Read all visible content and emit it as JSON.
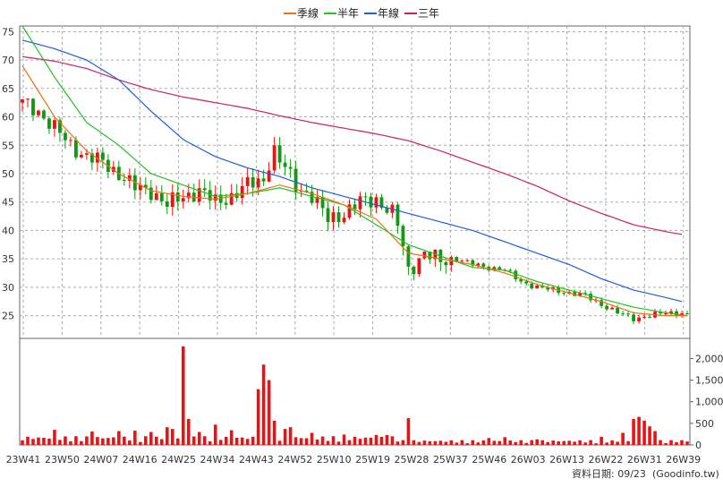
{
  "legend": {
    "quarter_label": "季線",
    "half_year_label": "半年",
    "year_label": "年線",
    "three_year_label": "三年"
  },
  "footer": {
    "date_label": "資料日期: 09/23",
    "source_label": "(Goodinfo.tw)"
  },
  "colors": {
    "quarter": "#e8741a",
    "half_year": "#22c322",
    "year": "#1f5fd6",
    "three_year": "#cc1f66",
    "candle_up": "#ee1111",
    "candle_down": "#119911",
    "volume": "#ee1111",
    "grid": "#aaaaaa",
    "background": "#ffffff"
  },
  "chart_data": {
    "type": "candlestick",
    "title": "",
    "x_tick_labels": [
      "23W41",
      "23W50",
      "24W07",
      "24W16",
      "24W25",
      "24W34",
      "24W43",
      "24W52",
      "25W10",
      "25W19",
      "25W28",
      "25W37",
      "25W46",
      "26W03",
      "26W13",
      "26W22",
      "26W31",
      "26W39"
    ],
    "price_axis": {
      "ticks": [
        25,
        30,
        35,
        40,
        45,
        50,
        55,
        60,
        65,
        70,
        75
      ],
      "range": [
        21,
        76
      ],
      "grid": true
    },
    "volume_axis": {
      "ticks": [
        0,
        500,
        "1,000",
        "1,500",
        "2,000"
      ],
      "range": [
        0,
        2300
      ],
      "grid": false
    },
    "price_anchors": [
      [
        0,
        62.5
      ],
      [
        3,
        61
      ],
      [
        6,
        58
      ],
      [
        9,
        55
      ],
      [
        12,
        53
      ],
      [
        15,
        52
      ],
      [
        18,
        50
      ],
      [
        21,
        47.5
      ],
      [
        24,
        47
      ],
      [
        27,
        44.5
      ],
      [
        30,
        46
      ],
      [
        33,
        47
      ],
      [
        36,
        45
      ],
      [
        39,
        46
      ],
      [
        42,
        48
      ],
      [
        45,
        49
      ],
      [
        46,
        52
      ],
      [
        47,
        54
      ],
      [
        48,
        52
      ],
      [
        49,
        51
      ],
      [
        51,
        48
      ],
      [
        54,
        46
      ],
      [
        57,
        42
      ],
      [
        60,
        43
      ],
      [
        63,
        45
      ],
      [
        66,
        45.5
      ],
      [
        69,
        43
      ],
      [
        70,
        41
      ],
      [
        72,
        33
      ],
      [
        75,
        36
      ],
      [
        78,
        34.5
      ],
      [
        81,
        35
      ],
      [
        84,
        34
      ],
      [
        87,
        33.5
      ],
      [
        90,
        33
      ],
      [
        93,
        31
      ],
      [
        96,
        30
      ],
      [
        99,
        29.5
      ],
      [
        102,
        29
      ],
      [
        105,
        28.5
      ],
      [
        108,
        27
      ],
      [
        111,
        25.5
      ],
      [
        114,
        24.5
      ],
      [
        117,
        25
      ],
      [
        120,
        25.5
      ],
      [
        123,
        25.5
      ],
      [
        124,
        25
      ]
    ],
    "ma_quarter": [
      [
        0,
        69
      ],
      [
        6,
        60
      ],
      [
        12,
        54
      ],
      [
        18,
        50
      ],
      [
        24,
        47
      ],
      [
        30,
        46
      ],
      [
        36,
        45.5
      ],
      [
        42,
        46.5
      ],
      [
        48,
        48
      ],
      [
        54,
        46.5
      ],
      [
        60,
        44.5
      ],
      [
        66,
        42
      ],
      [
        72,
        36
      ],
      [
        78,
        35
      ],
      [
        84,
        34
      ],
      [
        90,
        32.5
      ],
      [
        96,
        30.5
      ],
      [
        102,
        29
      ],
      [
        108,
        27.5
      ],
      [
        114,
        25.5
      ],
      [
        120,
        25
      ],
      [
        124,
        25
      ]
    ],
    "ma_half_year": [
      [
        0,
        76
      ],
      [
        6,
        67
      ],
      [
        12,
        59
      ],
      [
        18,
        55
      ],
      [
        24,
        50
      ],
      [
        30,
        48
      ],
      [
        36,
        46
      ],
      [
        42,
        46.5
      ],
      [
        48,
        47.5
      ],
      [
        54,
        46
      ],
      [
        60,
        44.5
      ],
      [
        66,
        41
      ],
      [
        72,
        37.5
      ],
      [
        78,
        35.5
      ],
      [
        84,
        33.5
      ],
      [
        90,
        33
      ],
      [
        96,
        31
      ],
      [
        102,
        29.5
      ],
      [
        108,
        28
      ],
      [
        114,
        26.5
      ],
      [
        120,
        25.5
      ],
      [
        124,
        25
      ]
    ],
    "ma_year": [
      [
        0,
        73.5
      ],
      [
        6,
        72
      ],
      [
        12,
        70
      ],
      [
        18,
        66.5
      ],
      [
        24,
        61
      ],
      [
        30,
        56
      ],
      [
        36,
        53
      ],
      [
        42,
        51
      ],
      [
        48,
        49.5
      ],
      [
        54,
        47.5
      ],
      [
        60,
        46
      ],
      [
        66,
        44.5
      ],
      [
        72,
        43
      ],
      [
        78,
        41.5
      ],
      [
        84,
        40
      ],
      [
        90,
        38
      ],
      [
        96,
        36
      ],
      [
        102,
        34
      ],
      [
        108,
        31.5
      ],
      [
        114,
        29.5
      ],
      [
        120,
        28.2
      ],
      [
        123,
        27.5
      ]
    ],
    "ma_three_year": [
      [
        0,
        70.6
      ],
      [
        6,
        69.8
      ],
      [
        12,
        68.5
      ],
      [
        18,
        66.5
      ],
      [
        24,
        64.8
      ],
      [
        30,
        63.5
      ],
      [
        36,
        62.5
      ],
      [
        42,
        61.5
      ],
      [
        48,
        60.2
      ],
      [
        54,
        59
      ],
      [
        60,
        58
      ],
      [
        66,
        57
      ],
      [
        72,
        55.8
      ],
      [
        78,
        54
      ],
      [
        84,
        52
      ],
      [
        90,
        50
      ],
      [
        96,
        47.8
      ],
      [
        102,
        45.2
      ],
      [
        108,
        43
      ],
      [
        114,
        41
      ],
      [
        120,
        39.8
      ],
      [
        123,
        39.3
      ]
    ],
    "volume_spikes": [
      [
        6,
        350
      ],
      [
        13,
        310
      ],
      [
        18,
        320
      ],
      [
        21,
        330
      ],
      [
        24,
        300
      ],
      [
        27,
        410
      ],
      [
        28,
        370
      ],
      [
        30,
        2280
      ],
      [
        31,
        600
      ],
      [
        33,
        300
      ],
      [
        36,
        470
      ],
      [
        39,
        340
      ],
      [
        44,
        1290
      ],
      [
        45,
        1860
      ],
      [
        46,
        1500
      ],
      [
        47,
        560
      ],
      [
        49,
        370
      ],
      [
        50,
        410
      ],
      [
        54,
        280
      ],
      [
        60,
        240
      ],
      [
        66,
        230
      ],
      [
        68,
        230
      ],
      [
        72,
        620
      ],
      [
        87,
        160
      ],
      [
        90,
        180
      ],
      [
        96,
        130
      ],
      [
        108,
        190
      ],
      [
        112,
        280
      ],
      [
        114,
        600
      ],
      [
        115,
        650
      ],
      [
        116,
        560
      ],
      [
        117,
        430
      ],
      [
        118,
        320
      ],
      [
        123,
        110
      ]
    ],
    "volume_base": 150
  }
}
